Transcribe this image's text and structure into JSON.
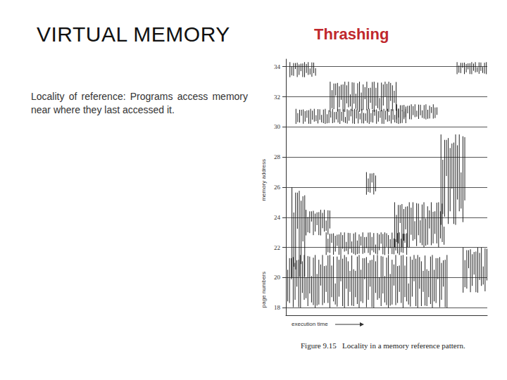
{
  "slide": {
    "title": "VIRTUAL MEMORY",
    "subtitle": "Thrashing",
    "body": "Locality of reference: Programs access memory near where they last accessed it."
  },
  "chart_data": {
    "type": "pattern",
    "title": "Figure 9.15   Locality in a memory reference pattern.",
    "x_label": "execution time",
    "y_label": "page numbers",
    "y_label_upper": "memory address",
    "xlim": [
      0,
      100
    ],
    "ylim": [
      17.5,
      34.5
    ],
    "yticks": [
      18,
      20,
      22,
      24,
      26,
      28,
      30,
      32,
      34
    ],
    "tick_labels": "y",
    "grid": true,
    "color": "#222222",
    "regions": [
      [
        2,
        15,
        33.3,
        34.3
      ],
      [
        85,
        100,
        33.5,
        34.3
      ],
      [
        5,
        60,
        30.2,
        31.2
      ],
      [
        22,
        55,
        31,
        33
      ],
      [
        55,
        75,
        30.5,
        31.5
      ],
      [
        77,
        89,
        23.5,
        29.5
      ],
      [
        54,
        79,
        22,
        25
      ],
      [
        10,
        22,
        22.8,
        24.5
      ],
      [
        0,
        80,
        18,
        21.5
      ],
      [
        20,
        60,
        21.5,
        23
      ],
      [
        3,
        10,
        20,
        26
      ],
      [
        40,
        45,
        25.5,
        27
      ],
      [
        88,
        100,
        19,
        22
      ]
    ]
  }
}
